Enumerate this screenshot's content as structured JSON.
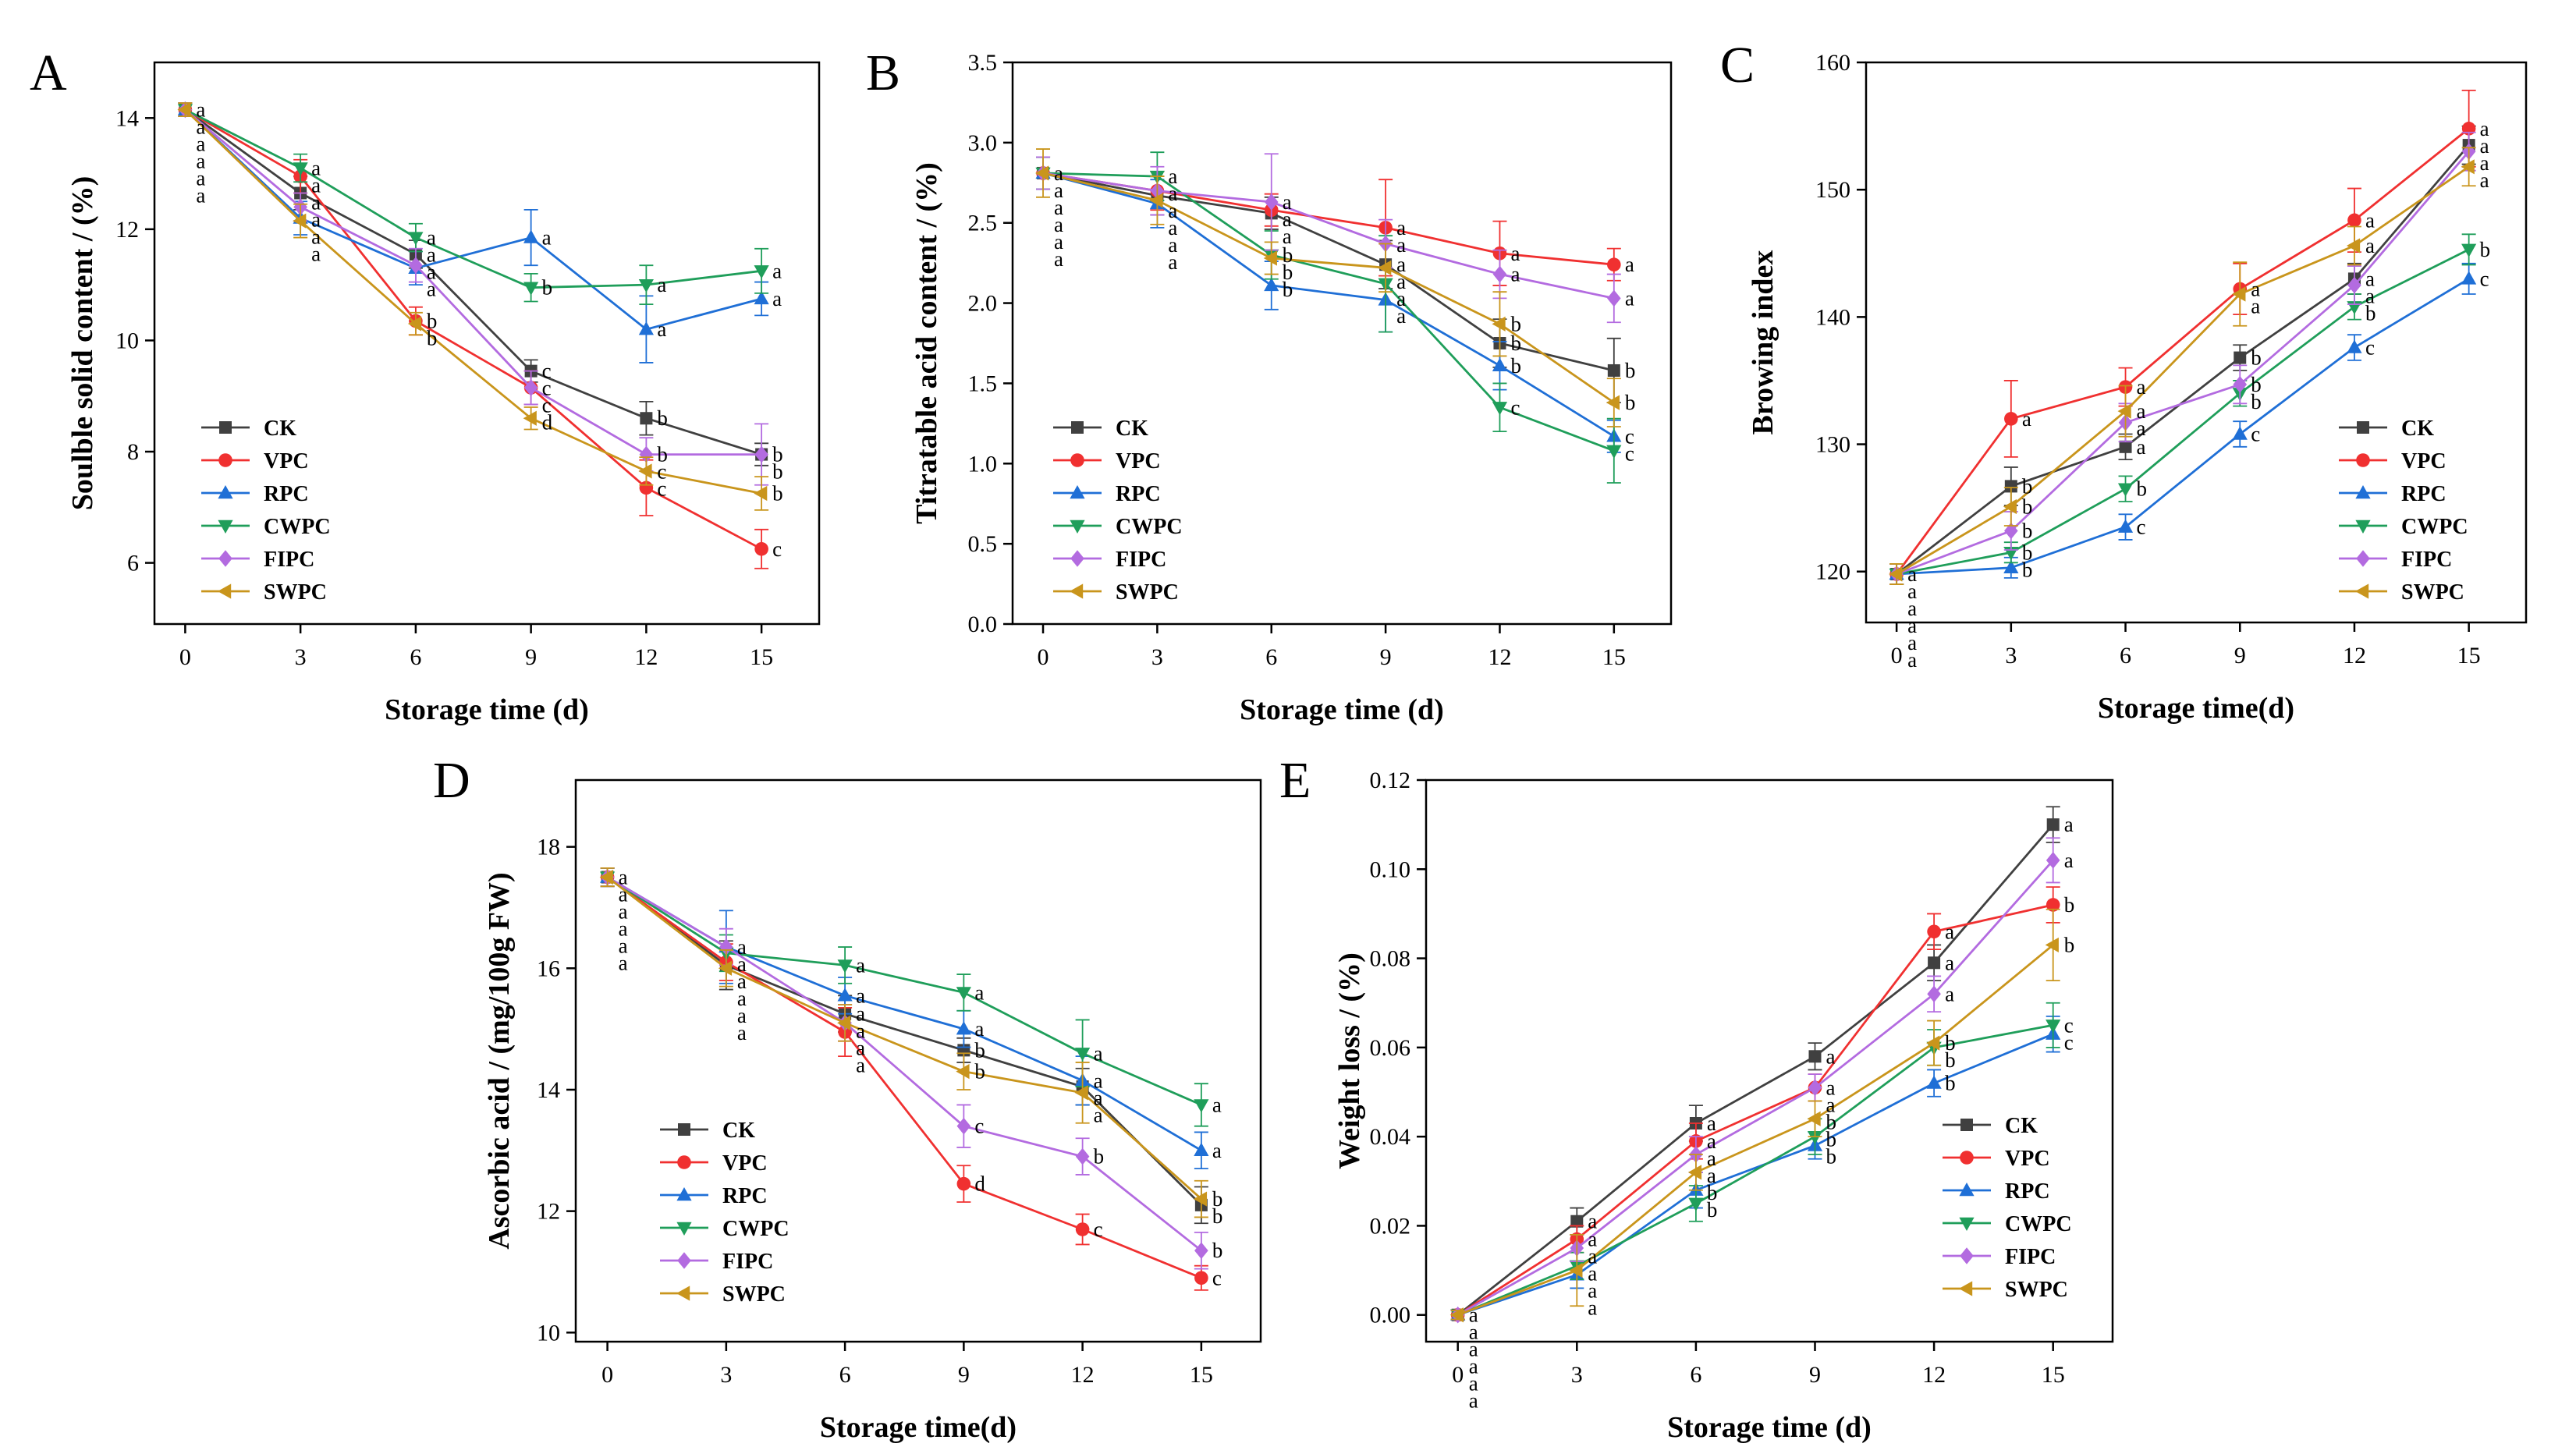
{
  "chart_data": [
    {
      "type": "line",
      "panel": "A",
      "title": "",
      "xlabel": "Storage time (d)",
      "ylabel": "Soulble solid content / (%)",
      "x": [
        0,
        3,
        6,
        9,
        12,
        15
      ],
      "xlim": [
        -0.8,
        16.5
      ],
      "ylim": [
        4.9,
        15.0
      ],
      "yticks": [
        6,
        8,
        10,
        12,
        14
      ],
      "series": [
        {
          "name": "CK",
          "color": "#404040",
          "marker": "square",
          "values": [
            14.15,
            12.65,
            11.55,
            9.45,
            8.6,
            7.95
          ],
          "errors": [
            0.12,
            0.3,
            0.25,
            0.2,
            0.3,
            0.2
          ],
          "labels": [
            "a",
            "a",
            "a",
            "c",
            "b",
            "b"
          ]
        },
        {
          "name": "VPC",
          "color": "#f03030",
          "marker": "circle",
          "values": [
            14.15,
            12.95,
            10.35,
            9.15,
            7.35,
            6.25
          ],
          "errors": [
            0.12,
            0.3,
            0.25,
            0.3,
            0.5,
            0.35
          ],
          "labels": [
            "a",
            "a",
            "b",
            "c",
            "c",
            "c"
          ]
        },
        {
          "name": "RPC",
          "color": "#1f6fd6",
          "marker": "triangle-up",
          "values": [
            14.15,
            12.2,
            11.3,
            11.85,
            10.2,
            10.75
          ],
          "errors": [
            0.12,
            0.3,
            0.3,
            0.5,
            0.6,
            0.3
          ],
          "labels": [
            "a",
            "a",
            "a",
            "a",
            "a",
            "a"
          ]
        },
        {
          "name": "CWPC",
          "color": "#1f9e5a",
          "marker": "triangle-down",
          "values": [
            14.15,
            13.1,
            11.85,
            10.95,
            11.0,
            11.25
          ],
          "errors": [
            0.12,
            0.25,
            0.25,
            0.25,
            0.35,
            0.4
          ],
          "labels": [
            "a",
            "a",
            "a",
            "b",
            "a",
            "a"
          ]
        },
        {
          "name": "FIPC",
          "color": "#b36be0",
          "marker": "diamond",
          "values": [
            14.15,
            12.4,
            11.35,
            9.15,
            7.95,
            7.95
          ],
          "errors": [
            0.12,
            0.25,
            0.3,
            0.3,
            0.3,
            0.55
          ],
          "labels": [
            "a",
            "a",
            "a",
            "c",
            "b",
            "b"
          ]
        },
        {
          "name": "SWPC",
          "color": "#c9951c",
          "marker": "triangle-left",
          "values": [
            14.15,
            12.15,
            10.3,
            8.6,
            7.65,
            7.25
          ],
          "errors": [
            0.12,
            0.3,
            0.2,
            0.2,
            0.25,
            0.3
          ],
          "labels": [
            "a",
            "a",
            "b",
            "d",
            "c",
            "b"
          ]
        }
      ]
    },
    {
      "type": "line",
      "panel": "B",
      "title": "",
      "xlabel": "Storage time (d)",
      "ylabel": "Titratable acid content / (%)",
      "x": [
        0,
        3,
        6,
        9,
        12,
        15
      ],
      "xlim": [
        -0.8,
        16.5
      ],
      "ylim": [
        0.0,
        3.5
      ],
      "yticks": [
        0.0,
        0.5,
        1.0,
        1.5,
        2.0,
        2.5,
        3.0,
        3.5
      ],
      "series": [
        {
          "name": "CK",
          "color": "#404040",
          "marker": "square",
          "values": [
            2.81,
            2.67,
            2.56,
            2.24,
            1.75,
            1.58
          ],
          "errors": [
            0.1,
            0.12,
            0.1,
            0.15,
            0.15,
            0.2
          ],
          "labels": [
            "a",
            "a",
            "a",
            "a",
            "b",
            "b"
          ]
        },
        {
          "name": "VPC",
          "color": "#f03030",
          "marker": "circle",
          "values": [
            2.81,
            2.7,
            2.58,
            2.47,
            2.31,
            2.24
          ],
          "errors": [
            0.1,
            0.12,
            0.1,
            0.3,
            0.2,
            0.1
          ],
          "labels": [
            "a",
            "a",
            "a",
            "a",
            "a",
            "a"
          ]
        },
        {
          "name": "RPC",
          "color": "#1f6fd6",
          "marker": "triangle-up",
          "values": [
            2.81,
            2.62,
            2.11,
            2.02,
            1.61,
            1.17
          ],
          "errors": [
            0.1,
            0.15,
            0.15,
            0.2,
            0.15,
            0.1
          ],
          "labels": [
            "a",
            "a",
            "b",
            "a",
            "b",
            "c"
          ]
        },
        {
          "name": "CWPC",
          "color": "#1f9e5a",
          "marker": "triangle-down",
          "values": [
            2.81,
            2.79,
            2.3,
            2.12,
            1.35,
            1.08
          ],
          "errors": [
            0.1,
            0.15,
            0.15,
            0.3,
            0.15,
            0.2
          ],
          "labels": [
            "a",
            "a",
            "b",
            "a",
            "c",
            "c"
          ]
        },
        {
          "name": "FIPC",
          "color": "#b36be0",
          "marker": "diamond",
          "values": [
            2.81,
            2.7,
            2.63,
            2.37,
            2.18,
            2.03
          ],
          "errors": [
            0.1,
            0.15,
            0.3,
            0.15,
            0.15,
            0.15
          ],
          "labels": [
            "a",
            "a",
            "a",
            "a",
            "a",
            "a"
          ]
        },
        {
          "name": "SWPC",
          "color": "#c9951c",
          "marker": "triangle-left",
          "values": [
            2.81,
            2.64,
            2.28,
            2.22,
            1.87,
            1.38
          ],
          "errors": [
            0.15,
            0.15,
            0.1,
            0.15,
            0.2,
            0.15
          ],
          "labels": [
            "a",
            "a",
            "b",
            "a",
            "b",
            "b"
          ]
        }
      ]
    },
    {
      "type": "line",
      "panel": "C",
      "title": "",
      "xlabel": "Storage time(d)",
      "ylabel": "Browing index",
      "x": [
        0,
        3,
        6,
        9,
        12,
        15
      ],
      "xlim": [
        -0.8,
        16.5
      ],
      "ylim": [
        116.0,
        160.0
      ],
      "yticks": [
        120,
        130,
        140,
        150,
        160
      ],
      "series": [
        {
          "name": "CK",
          "color": "#404040",
          "marker": "square",
          "values": [
            119.8,
            126.7,
            129.8,
            136.8,
            143.0,
            153.5
          ],
          "errors": [
            0.8,
            1.5,
            1.0,
            1.0,
            1.2,
            1.5
          ],
          "labels": [
            "a",
            "b",
            "a",
            "b",
            "a",
            "a"
          ]
        },
        {
          "name": "VPC",
          "color": "#f03030",
          "marker": "circle",
          "values": [
            119.8,
            132.0,
            134.5,
            142.2,
            147.6,
            154.8
          ],
          "errors": [
            0.8,
            3.0,
            1.5,
            2.0,
            2.5,
            3.0
          ],
          "labels": [
            "a",
            "a",
            "a",
            "a",
            "a",
            "a"
          ]
        },
        {
          "name": "RPC",
          "color": "#1f6fd6",
          "marker": "triangle-up",
          "values": [
            119.8,
            120.3,
            123.5,
            130.8,
            137.6,
            143.0
          ],
          "errors": [
            0.8,
            0.8,
            1.0,
            1.0,
            1.0,
            1.2
          ],
          "labels": [
            "a",
            "b",
            "c",
            "c",
            "c",
            "c"
          ]
        },
        {
          "name": "CWPC",
          "color": "#1f9e5a",
          "marker": "triangle-down",
          "values": [
            119.8,
            121.5,
            126.5,
            134.0,
            140.8,
            145.3
          ],
          "errors": [
            0.8,
            0.8,
            1.0,
            1.0,
            1.0,
            1.2
          ],
          "labels": [
            "a",
            "b",
            "b",
            "b",
            "b",
            "b"
          ]
        },
        {
          "name": "FIPC",
          "color": "#b36be0",
          "marker": "diamond",
          "values": [
            119.8,
            123.2,
            131.7,
            134.7,
            142.5,
            153.0
          ],
          "errors": [
            0.8,
            1.5,
            1.5,
            1.5,
            1.5,
            1.5
          ],
          "labels": [
            "a",
            "b",
            "a",
            "b",
            "a",
            "a"
          ]
        },
        {
          "name": "SWPC",
          "color": "#c9951c",
          "marker": "triangle-left",
          "values": [
            119.8,
            125.1,
            132.6,
            141.8,
            145.6,
            151.8
          ],
          "errors": [
            0.8,
            1.5,
            2.0,
            2.5,
            1.5,
            1.5
          ],
          "labels": [
            "a",
            "b",
            "a",
            "a",
            "a",
            "a"
          ]
        }
      ]
    },
    {
      "type": "line",
      "panel": "D",
      "title": "",
      "xlabel": "Storage time(d)",
      "ylabel": "Ascorbic acid / (mg/100g FW)",
      "x": [
        0,
        3,
        6,
        9,
        12,
        15
      ],
      "xlim": [
        -0.8,
        16.5
      ],
      "ylim": [
        9.85,
        19.1
      ],
      "yticks": [
        10,
        12,
        14,
        16,
        18
      ],
      "series": [
        {
          "name": "CK",
          "color": "#404040",
          "marker": "square",
          "values": [
            17.5,
            16.05,
            15.25,
            14.65,
            14.05,
            12.1
          ],
          "errors": [
            0.15,
            0.4,
            0.3,
            0.2,
            0.3,
            0.3
          ],
          "labels": [
            "a",
            "a",
            "a",
            "b",
            "a",
            "b"
          ]
        },
        {
          "name": "VPC",
          "color": "#f03030",
          "marker": "circle",
          "values": [
            17.5,
            16.1,
            14.95,
            12.45,
            11.7,
            10.9
          ],
          "errors": [
            0.15,
            0.3,
            0.4,
            0.3,
            0.25,
            0.2
          ],
          "labels": [
            "a",
            "a",
            "a",
            "d",
            "c",
            "c"
          ]
        },
        {
          "name": "RPC",
          "color": "#1f6fd6",
          "marker": "triangle-up",
          "values": [
            17.5,
            16.35,
            15.55,
            15.0,
            14.15,
            13.0
          ],
          "errors": [
            0.15,
            0.6,
            0.3,
            0.3,
            0.4,
            0.3
          ],
          "labels": [
            "a",
            "a",
            "a",
            "a",
            "a",
            "a"
          ]
        },
        {
          "name": "CWPC",
          "color": "#1f9e5a",
          "marker": "triangle-down",
          "values": [
            17.5,
            16.25,
            16.05,
            15.6,
            14.6,
            13.75
          ],
          "errors": [
            0.15,
            0.3,
            0.3,
            0.3,
            0.55,
            0.35
          ],
          "labels": [
            "a",
            "a",
            "a",
            "a",
            "a",
            "a"
          ]
        },
        {
          "name": "FIPC",
          "color": "#b36be0",
          "marker": "diamond",
          "values": [
            17.5,
            16.35,
            15.1,
            13.4,
            12.9,
            11.35
          ],
          "errors": [
            0.15,
            0.3,
            0.3,
            0.35,
            0.3,
            0.3
          ],
          "labels": [
            "a",
            "a",
            "a",
            "c",
            "b",
            "b"
          ]
        },
        {
          "name": "SWPC",
          "color": "#c9951c",
          "marker": "triangle-left",
          "values": [
            17.5,
            16.0,
            15.1,
            14.3,
            13.95,
            12.2
          ],
          "errors": [
            0.15,
            0.3,
            0.3,
            0.3,
            0.5,
            0.3
          ],
          "labels": [
            "a",
            "a",
            "a",
            "b",
            "a",
            "b"
          ]
        }
      ]
    },
    {
      "type": "line",
      "panel": "E",
      "title": "",
      "xlabel": "Storage time (d)",
      "ylabel": "Weight loss / (%)",
      "x": [
        0,
        3,
        6,
        9,
        12,
        15
      ],
      "xlim": [
        -0.8,
        16.5
      ],
      "ylim": [
        -0.006,
        0.12
      ],
      "yticks": [
        0.0,
        0.02,
        0.04,
        0.06,
        0.08,
        0.1,
        0.12
      ],
      "series": [
        {
          "name": "CK",
          "color": "#404040",
          "marker": "square",
          "values": [
            0.0,
            0.021,
            0.043,
            0.058,
            0.079,
            0.11
          ],
          "errors": [
            0.001,
            0.003,
            0.004,
            0.003,
            0.004,
            0.004
          ],
          "labels": [
            "a",
            "a",
            "a",
            "a",
            "a",
            "a"
          ]
        },
        {
          "name": "VPC",
          "color": "#f03030",
          "marker": "circle",
          "values": [
            0.0,
            0.017,
            0.039,
            0.051,
            0.086,
            0.092
          ],
          "errors": [
            0.001,
            0.003,
            0.004,
            0.003,
            0.004,
            0.004
          ],
          "labels": [
            "a",
            "a",
            "a",
            "a",
            "a",
            "b"
          ]
        },
        {
          "name": "RPC",
          "color": "#1f6fd6",
          "marker": "triangle-up",
          "values": [
            0.0,
            0.009,
            0.028,
            0.038,
            0.052,
            0.063
          ],
          "errors": [
            0.001,
            0.003,
            0.004,
            0.003,
            0.003,
            0.004
          ],
          "labels": [
            "a",
            "a",
            "b",
            "b",
            "b",
            "c"
          ]
        },
        {
          "name": "CWPC",
          "color": "#1f9e5a",
          "marker": "triangle-down",
          "values": [
            0.0,
            0.011,
            0.025,
            0.04,
            0.06,
            0.065
          ],
          "errors": [
            0.001,
            0.003,
            0.004,
            0.004,
            0.004,
            0.005
          ],
          "labels": [
            "a",
            "a",
            "b",
            "b",
            "b",
            "c"
          ]
        },
        {
          "name": "FIPC",
          "color": "#b36be0",
          "marker": "diamond",
          "values": [
            0.0,
            0.015,
            0.036,
            0.051,
            0.072,
            0.102
          ],
          "errors": [
            0.001,
            0.003,
            0.004,
            0.003,
            0.004,
            0.005
          ],
          "labels": [
            "a",
            "a",
            "a",
            "a",
            "a",
            "a"
          ]
        },
        {
          "name": "SWPC",
          "color": "#c9951c",
          "marker": "triangle-left",
          "values": [
            0.0,
            0.01,
            0.032,
            0.044,
            0.061,
            0.083
          ],
          "errors": [
            0.001,
            0.008,
            0.004,
            0.004,
            0.005,
            0.008
          ],
          "labels": [
            "a",
            "a",
            "a",
            "b",
            "b",
            "b"
          ]
        }
      ]
    }
  ]
}
